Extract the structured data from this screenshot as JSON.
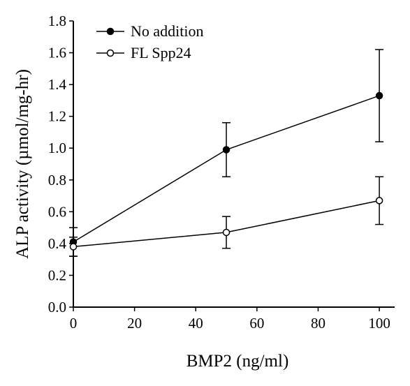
{
  "chart_data": {
    "type": "line",
    "xlabel": "BMP2 (ng/ml)",
    "ylabel": "ALP activity (µmol/mg-hr)",
    "xlim": [
      0,
      105
    ],
    "ylim": [
      0,
      1.8
    ],
    "x_ticks": [
      "0",
      "20",
      "40",
      "60",
      "80",
      "100"
    ],
    "y_ticks": [
      "0.0",
      "0.2",
      "0.4",
      "0.6",
      "0.8",
      "1.0",
      "1.2",
      "1.4",
      "1.6",
      "1.8"
    ],
    "x_tick_values": [
      0,
      20,
      40,
      60,
      80,
      100
    ],
    "y_tick_values": [
      0,
      0.2,
      0.4,
      0.6,
      0.8,
      1.0,
      1.2,
      1.4,
      1.6,
      1.8
    ],
    "legend_position": "top-left",
    "grid": false,
    "series": [
      {
        "name": "No addition",
        "marker": "filled-circle",
        "x": [
          0,
          50,
          100
        ],
        "y": [
          0.41,
          0.99,
          1.33
        ],
        "err": [
          0.09,
          0.17,
          0.29
        ]
      },
      {
        "name": "FL Spp24",
        "marker": "open-circle",
        "x": [
          0,
          50,
          100
        ],
        "y": [
          0.38,
          0.47,
          0.67
        ],
        "err": [
          0.06,
          0.1,
          0.15
        ]
      }
    ]
  }
}
